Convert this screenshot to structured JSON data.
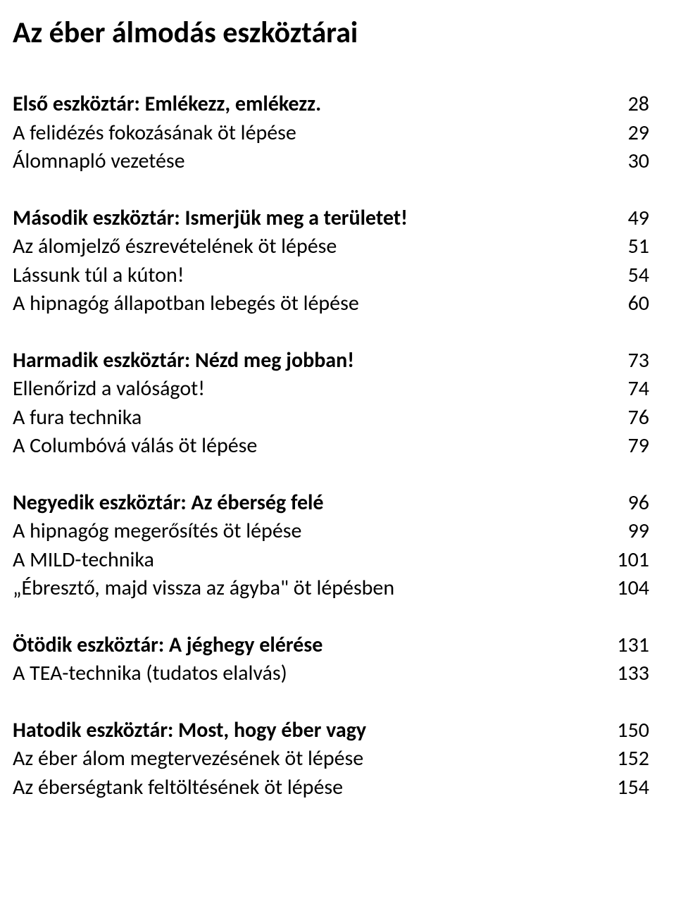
{
  "title": "Az éber álmodás eszköztárai",
  "colors": {
    "text": "#000000",
    "background": "#ffffff"
  },
  "typography": {
    "title_fontsize": 42,
    "row_fontsize": 30,
    "font_family": "Calibri"
  },
  "entries": [
    {
      "label": "Első eszköztár: Emlékezz, emlékezz.",
      "page": "28",
      "bold": true
    },
    {
      "label": "A felidézés fokozásának öt lépése",
      "page": "29",
      "bold": false
    },
    {
      "label": "Álomnapló vezetése",
      "page": "30",
      "bold": false
    },
    {
      "gap": true
    },
    {
      "label": "Második eszköztár: Ismerjük meg a területet!",
      "page": "49",
      "bold": true
    },
    {
      "label": "Az álomjelző észrevételének öt lépése",
      "page": "51",
      "bold": false
    },
    {
      "label": "Lássunk túl a kúton!",
      "page": "54",
      "bold": false
    },
    {
      "label": "A hipnagóg állapotban lebegés öt lépése",
      "page": "60",
      "bold": false
    },
    {
      "gap": true
    },
    {
      "label": "Harmadik eszköztár: Nézd meg jobban!",
      "page": "73",
      "bold": true
    },
    {
      "label": "Ellenőrizd a valóságot!",
      "page": "74",
      "bold": false
    },
    {
      "label": "A fura technika",
      "page": "76",
      "bold": false
    },
    {
      "label": "A Columbóvá válás öt lépése",
      "page": "79",
      "bold": false
    },
    {
      "gap": true
    },
    {
      "label": "Negyedik eszköztár: Az éberség felé",
      "page": "96",
      "bold": true
    },
    {
      "label": "A hipnagóg megerősítés öt lépése",
      "page": "99",
      "bold": false
    },
    {
      "label": "A MILD-technika",
      "page": "101",
      "bold": false
    },
    {
      "label": "„Ébresztő, majd vissza az ágyba\" öt lépésben",
      "page": "104",
      "bold": false
    },
    {
      "gap": true
    },
    {
      "label": "Ötödik eszköztár: A jéghegy elérése",
      "page": "131",
      "bold": true
    },
    {
      "label": "A TEA-technika (tudatos elalvás)",
      "page": "133",
      "bold": false
    },
    {
      "gap": true
    },
    {
      "label": "Hatodik eszköztár: Most, hogy éber vagy",
      "page": "150",
      "bold": true
    },
    {
      "label": "Az éber álom megtervezésének öt lépése",
      "page": "152",
      "bold": false
    },
    {
      "label": "Az éberségtank feltöltésének öt lépése",
      "page": "154",
      "bold": false
    }
  ]
}
